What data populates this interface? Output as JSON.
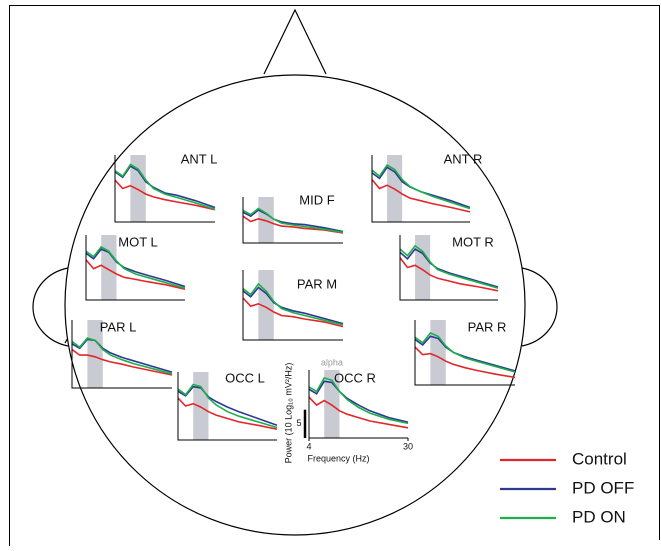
{
  "chart_data": {
    "type": "line",
    "x": [
      4,
      6,
      8,
      10,
      12,
      14,
      17,
      20,
      25,
      30
    ],
    "xlim": [
      4,
      30
    ],
    "ylim": [
      0,
      12
    ],
    "alpha_band": [
      8,
      12
    ],
    "band_label": "alpha",
    "xticks": [
      4,
      30
    ],
    "xlabel": "Frequency (Hz)",
    "ylabel": "Power (10 Log₁₀ mV²/Hz)",
    "scale_bar": 5,
    "legend": [
      {
        "name": "Control",
        "color": "#e2272c"
      },
      {
        "name": "PD OFF",
        "color": "#2b3a93"
      },
      {
        "name": "PD ON",
        "color": "#1fae4b"
      }
    ],
    "panels": [
      {
        "title": "ANT L",
        "series": [
          {
            "values": [
              7.5,
              6,
              6.5,
              5.8,
              5,
              4.5,
              4,
              3.6,
              3,
              2.2
            ]
          },
          {
            "values": [
              9,
              8,
              10,
              9.2,
              7.2,
              6.2,
              5.2,
              4.8,
              3.8,
              2.6
            ]
          },
          {
            "values": [
              9.2,
              8.2,
              10.3,
              9.5,
              7.5,
              6,
              5,
              4.4,
              3.4,
              2.3
            ]
          }
        ]
      },
      {
        "title": "MID F",
        "series": [
          {
            "values": [
              7,
              5.6,
              6.3,
              5.8,
              5,
              4.4,
              4.2,
              3.8,
              3.4,
              2.6
            ]
          },
          {
            "values": [
              8,
              7,
              8.6,
              7.6,
              6.2,
              5.5,
              5,
              4.8,
              4,
              3
            ]
          },
          {
            "values": [
              8.5,
              7.4,
              9,
              7.8,
              6.2,
              5.2,
              4.7,
              4.3,
              3.6,
              2.8
            ]
          }
        ]
      },
      {
        "title": "ANT R",
        "series": [
          {
            "values": [
              7.6,
              6,
              6.6,
              5.9,
              5,
              4.3,
              3.8,
              3.3,
              2.6,
              1.8
            ]
          },
          {
            "values": [
              8.8,
              7.8,
              9.8,
              9,
              7.2,
              6.3,
              5.4,
              4.8,
              3.8,
              2.6
            ]
          },
          {
            "values": [
              9.3,
              8.2,
              10.2,
              9.4,
              7.6,
              6.4,
              5.4,
              4.6,
              3.5,
              2.4
            ]
          }
        ]
      },
      {
        "title": "MOT L",
        "series": [
          {
            "values": [
              7.4,
              5.8,
              6.4,
              5.6,
              4.8,
              4.2,
              3.8,
              3.4,
              2.8,
              2
            ]
          },
          {
            "values": [
              8.6,
              7.6,
              9.4,
              8.8,
              7,
              6,
              5.2,
              4.6,
              3.6,
              2.5
            ]
          },
          {
            "values": [
              9,
              8,
              9.8,
              9,
              7.2,
              5.8,
              4.8,
              4.2,
              3.2,
              2.2
            ]
          }
        ]
      },
      {
        "title": "MOT R",
        "series": [
          {
            "values": [
              7.8,
              6,
              6.4,
              5.6,
              4.6,
              4,
              3.5,
              3,
              2.4,
              1.7
            ]
          },
          {
            "values": [
              8.8,
              7.6,
              9.4,
              8.6,
              6.8,
              5.8,
              5,
              4.4,
              3.4,
              2.4
            ]
          },
          {
            "values": [
              9.4,
              8.2,
              10,
              9,
              7,
              5.6,
              4.8,
              4.2,
              3.2,
              2.2
            ]
          }
        ]
      },
      {
        "title": "PAR M",
        "series": [
          {
            "values": [
              7.2,
              5.8,
              6.2,
              5.6,
              4.8,
              4.2,
              4,
              3.6,
              3.1,
              2.3
            ]
          },
          {
            "values": [
              8.4,
              7.4,
              9,
              8,
              6.4,
              5.6,
              5,
              4.6,
              3.7,
              2.8
            ]
          },
          {
            "values": [
              8.8,
              7.8,
              9.6,
              8.4,
              6.6,
              5.4,
              4.7,
              4.2,
              3.4,
              2.6
            ]
          }
        ]
      },
      {
        "title": "PAR L",
        "series": [
          {
            "values": [
              6.8,
              5.8,
              5.8,
              5.5,
              5,
              4.6,
              4.2,
              3.7,
              3,
              2.3
            ]
          },
          {
            "values": [
              7.8,
              7,
              8.6,
              8.4,
              7,
              6.2,
              5.4,
              4.8,
              3.8,
              2.8
            ]
          },
          {
            "values": [
              8.2,
              7.2,
              8.8,
              8.4,
              6.8,
              5.8,
              5,
              4.3,
              3.4,
              2.5
            ]
          }
        ]
      },
      {
        "title": "PAR R",
        "series": [
          {
            "values": [
              7,
              5.6,
              5.8,
              5.2,
              4.4,
              3.8,
              3.2,
              2.7,
              2,
              1.4
            ]
          },
          {
            "values": [
              8.4,
              7.4,
              9,
              8.6,
              7,
              6,
              5.2,
              4.6,
              3.6,
              2.6
            ]
          },
          {
            "values": [
              8.8,
              7.8,
              9.6,
              9,
              7.2,
              6,
              5,
              4.4,
              3.4,
              2.4
            ]
          }
        ]
      },
      {
        "title": "OCC L",
        "series": [
          {
            "values": [
              7.4,
              6,
              6.4,
              5.8,
              5,
              4.4,
              3.8,
              3.2,
              2.6,
              1.9
            ]
          },
          {
            "values": [
              8.6,
              7.8,
              9.4,
              9.2,
              7.6,
              6.8,
              5.8,
              5,
              3.8,
              2.6
            ]
          },
          {
            "values": [
              9,
              8,
              9.8,
              9.4,
              7.4,
              6.2,
              5,
              4.2,
              3.2,
              2.2
            ]
          }
        ]
      },
      {
        "title": "OCC R",
        "series": [
          {
            "values": [
              7.2,
              5.8,
              6.6,
              5.8,
              4.8,
              4.2,
              3.6,
              3,
              2.4,
              1.8
            ]
          },
          {
            "values": [
              8.6,
              7.8,
              10,
              9.8,
              8.2,
              7,
              5.8,
              4.8,
              3.6,
              2.8
            ]
          },
          {
            "values": [
              9,
              8.2,
              10.6,
              10.2,
              8.2,
              6.8,
              5.4,
              4.4,
              3.3,
              2.6
            ]
          }
        ]
      }
    ]
  }
}
